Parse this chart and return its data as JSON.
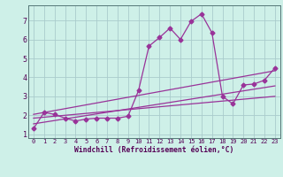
{
  "xlabel": "Windchill (Refroidissement éolien,°C)",
  "background_color": "#cef0e8",
  "grid_color": "#aacccc",
  "line_color": "#993399",
  "xlim": [
    -0.5,
    23.5
  ],
  "ylim": [
    0.8,
    7.8
  ],
  "x_ticks": [
    0,
    1,
    2,
    3,
    4,
    5,
    6,
    7,
    8,
    9,
    10,
    11,
    12,
    13,
    14,
    15,
    16,
    17,
    18,
    19,
    20,
    21,
    22,
    23
  ],
  "y_ticks": [
    1,
    2,
    3,
    4,
    5,
    6,
    7
  ],
  "series1_x": [
    0,
    1,
    2,
    3,
    4,
    5,
    6,
    7,
    8,
    9,
    10,
    11,
    12,
    13,
    14,
    15,
    16,
    17,
    18,
    19,
    20,
    21,
    22,
    23
  ],
  "series1_y": [
    1.3,
    2.15,
    2.05,
    1.85,
    1.7,
    1.8,
    1.85,
    1.85,
    1.85,
    1.95,
    3.3,
    5.65,
    6.1,
    6.6,
    6.0,
    6.95,
    7.35,
    6.35,
    3.0,
    2.6,
    3.6,
    3.65,
    3.85,
    4.5
  ],
  "series2_x": [
    0,
    23
  ],
  "series2_y": [
    1.55,
    3.55
  ],
  "series3_x": [
    0,
    23
  ],
  "series3_y": [
    1.85,
    3.0
  ],
  "series4_x": [
    0,
    23
  ],
  "series4_y": [
    2.05,
    4.35
  ],
  "markersize": 2.5,
  "linewidth": 0.9
}
